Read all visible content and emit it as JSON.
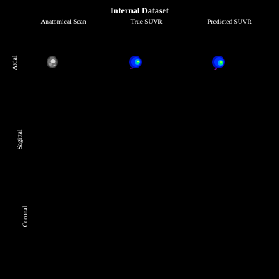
{
  "figure": {
    "title": "Internal Dataset",
    "columns": [
      "Anatomical Scan",
      "True SUVR",
      "Predicted SUVR"
    ],
    "rows": [
      "Axial",
      "Sagittal",
      "Coronal"
    ]
  }
}
